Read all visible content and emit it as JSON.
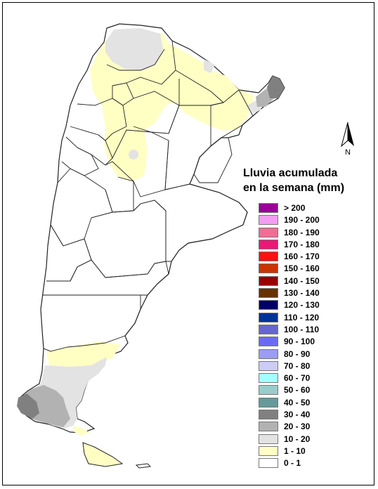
{
  "legend": {
    "title_line1": "Lluvia acumulada",
    "title_line2": "en la semana (mm)",
    "items": [
      {
        "label": "> 200",
        "color": "#990099"
      },
      {
        "label": "190 - 200",
        "color": "#f29cf2"
      },
      {
        "label": "180 - 190",
        "color": "#f26d96"
      },
      {
        "label": "170 - 180",
        "color": "#ed1777"
      },
      {
        "label": "160 - 170",
        "color": "#ff1010"
      },
      {
        "label": "150 - 160",
        "color": "#cc3300"
      },
      {
        "label": "140 - 150",
        "color": "#990000"
      },
      {
        "label": "130 - 140",
        "color": "#663300"
      },
      {
        "label": "120 - 130",
        "color": "#000066"
      },
      {
        "label": "110 - 120",
        "color": "#003399"
      },
      {
        "label": "100 - 110",
        "color": "#6666cc"
      },
      {
        "label": "90 - 100",
        "color": "#6b6bf2"
      },
      {
        "label": "80 - 90",
        "color": "#9c9cf5"
      },
      {
        "label": "70 - 80",
        "color": "#ccccf5"
      },
      {
        "label": "60 - 70",
        "color": "#a3ffff"
      },
      {
        "label": "50 - 60",
        "color": "#99cccc"
      },
      {
        "label": "40 - 50",
        "color": "#669999"
      },
      {
        "label": "30 - 40",
        "color": "#808080"
      },
      {
        "label": "20 - 30",
        "color": "#b2b2b2"
      },
      {
        "label": "10 - 20",
        "color": "#e3e3e3"
      },
      {
        "label": "1 - 10",
        "color": "#ffffc4"
      },
      {
        "label": "0 - 1",
        "color": "#ffffff"
      }
    ]
  },
  "north_arrow": {
    "label": "N",
    "icon": "north-arrow-icon"
  },
  "map": {
    "region": "Argentina",
    "base_color": "#ffffff"
  }
}
